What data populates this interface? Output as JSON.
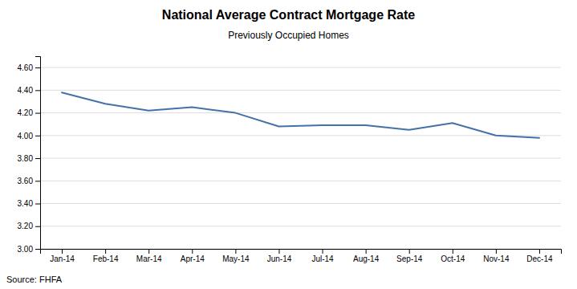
{
  "chart_data": {
    "type": "line",
    "title": "National Average Contract Mortgage Rate",
    "subtitle": "Previously Occupied Homes",
    "annotations": [
      "Source: FHFA"
    ],
    "categories": [
      "Jan-14",
      "Feb-14",
      "Mar-14",
      "Apr-14",
      "May-14",
      "Jun-14",
      "Jul-14",
      "Aug-14",
      "Sep-14",
      "Oct-14",
      "Nov-14",
      "Dec-14"
    ],
    "values": [
      4.38,
      4.28,
      4.22,
      4.25,
      4.2,
      4.08,
      4.09,
      4.09,
      4.05,
      4.11,
      4.0,
      3.98
    ],
    "color": "#4472a8",
    "ylim": [
      3.0,
      4.7
    ],
    "yticks": [
      {
        "value": 3.0,
        "label": "3.00"
      },
      {
        "value": 3.2,
        "label": "3.20"
      },
      {
        "value": 3.4,
        "label": "3.40"
      },
      {
        "value": 3.6,
        "label": "3.60"
      },
      {
        "value": 3.8,
        "label": "3.80"
      },
      {
        "value": 4.0,
        "label": "4.00"
      },
      {
        "value": 4.2,
        "label": "4.20"
      },
      {
        "value": 4.4,
        "label": "4.40"
      },
      {
        "value": 4.6,
        "label": "4.60"
      }
    ],
    "grid": true
  }
}
